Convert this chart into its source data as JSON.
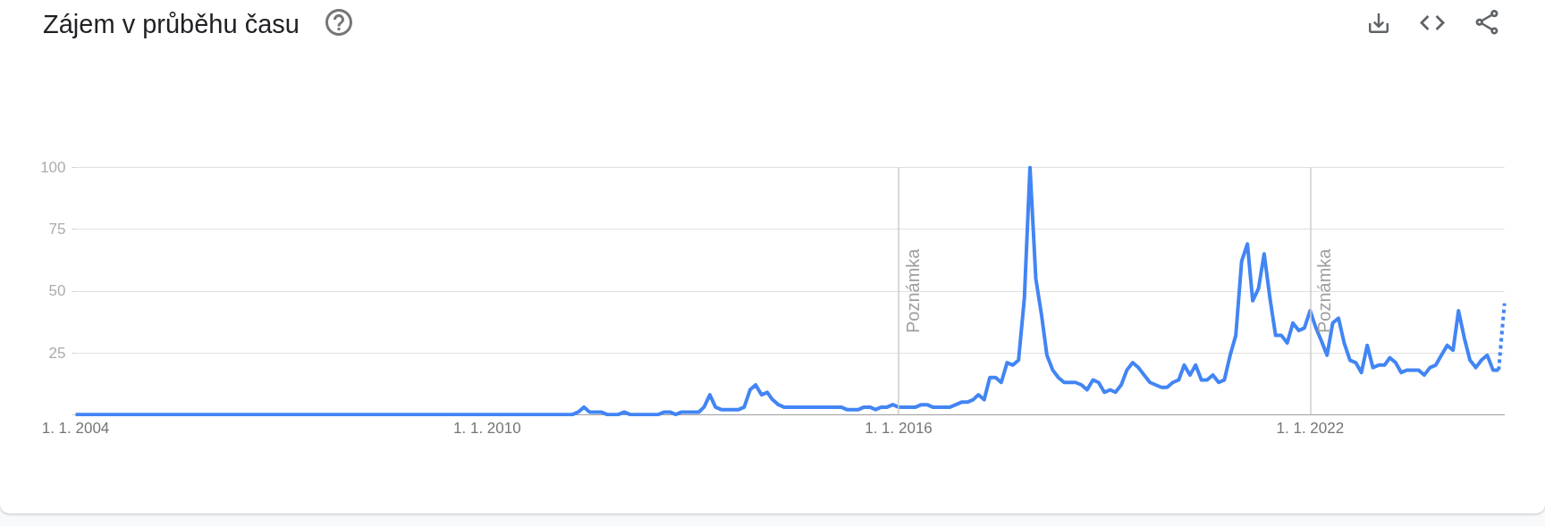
{
  "chart_data": {
    "type": "line",
    "title": "Zájem v průběhu času",
    "xlim": [
      "2004-01",
      "2024-11"
    ],
    "xticks": [
      {
        "value": "2004-01-01",
        "label": "1. 1. 2004"
      },
      {
        "value": "2010-01-01",
        "label": "1. 1. 2010"
      },
      {
        "value": "2016-01-01",
        "label": "1. 1. 2016"
      },
      {
        "value": "2022-01-01",
        "label": "1. 1. 2022"
      }
    ],
    "ylim": [
      0,
      100
    ],
    "yticks": [
      {
        "value": 0,
        "label": null
      },
      25,
      50,
      75,
      100
    ],
    "grid": "y",
    "marker": "none",
    "ref_lines": [
      {
        "axis": "x",
        "value": "2016-01-01",
        "label": "Poznámka",
        "color": "#cccccc"
      },
      {
        "axis": "x",
        "value": "2022-01-01",
        "label": "Poznámka",
        "color": "#cccccc"
      }
    ],
    "series": [
      {
        "color": "#4285f4",
        "line_style": "solid",
        "x": [
          "2004-01",
          "2011-04",
          "2011-05",
          "2011-06",
          "2011-07",
          "2011-08",
          "2011-09",
          "2011-10",
          "2011-12",
          "2012-01",
          "2012-02",
          "2012-07",
          "2012-08",
          "2012-09",
          "2012-10",
          "2012-11",
          "2013-02",
          "2013-03",
          "2013-04",
          "2013-05",
          "2013-06",
          "2013-09",
          "2013-10",
          "2013-11",
          "2013-12",
          "2014-01",
          "2014-02",
          "2014-03",
          "2014-04",
          "2014-05",
          "2015-03",
          "2015-04",
          "2015-06",
          "2015-07",
          "2015-08",
          "2015-09",
          "2015-10",
          "2015-11",
          "2015-12",
          "2016-01",
          "2016-04",
          "2016-05",
          "2016-06",
          "2016-07",
          "2016-10",
          "2016-11",
          "2016-12",
          "2017-01",
          "2017-02",
          "2017-03",
          "2017-04",
          "2017-05",
          "2017-06",
          "2017-07",
          "2017-08",
          "2017-09",
          "2017-10",
          "2017-11",
          "2017-12",
          "2018-01",
          "2018-02",
          "2018-03",
          "2018-04",
          "2018-05",
          "2018-06",
          "2018-08",
          "2018-09",
          "2018-10",
          "2018-11",
          "2018-12",
          "2019-01",
          "2019-02",
          "2019-03",
          "2019-04",
          "2019-05",
          "2019-06",
          "2019-07",
          "2019-08",
          "2019-09",
          "2019-10",
          "2019-11",
          "2019-12",
          "2020-01",
          "2020-02",
          "2020-03",
          "2020-04",
          "2020-05",
          "2020-06",
          "2020-07",
          "2020-08",
          "2020-09",
          "2020-10",
          "2020-11",
          "2020-12",
          "2021-01",
          "2021-02",
          "2021-03",
          "2021-04",
          "2021-05",
          "2021-06",
          "2021-07",
          "2021-08",
          "2021-09",
          "2021-10",
          "2021-11",
          "2021-12",
          "2022-01",
          "2022-02",
          "2022-03",
          "2022-04",
          "2022-05",
          "2022-06",
          "2022-07",
          "2022-08",
          "2022-09",
          "2022-10",
          "2022-11",
          "2022-12",
          "2023-01",
          "2023-02",
          "2023-03",
          "2023-04",
          "2023-05",
          "2023-06",
          "2023-08",
          "2023-09",
          "2023-10",
          "2023-11",
          "2023-12",
          "2024-01",
          "2024-02",
          "2024-03",
          "2024-04",
          "2024-05",
          "2024-06",
          "2024-07",
          "2024-08",
          "2024-09",
          "2024-10"
        ],
        "values": [
          0,
          0,
          1,
          3,
          1,
          1,
          1,
          0,
          0,
          1,
          0,
          0,
          1,
          1,
          0,
          1,
          1,
          3,
          8,
          3,
          2,
          2,
          3,
          10,
          12,
          8,
          9,
          6,
          4,
          3,
          3,
          2,
          2,
          3,
          3,
          2,
          3,
          3,
          4,
          3,
          3,
          4,
          4,
          3,
          3,
          4,
          5,
          5,
          6,
          8,
          6,
          15,
          15,
          13,
          21,
          20,
          22,
          47,
          100,
          55,
          40,
          24,
          18,
          15,
          13,
          13,
          12,
          10,
          14,
          13,
          9,
          10,
          9,
          12,
          18,
          21,
          19,
          16,
          13,
          12,
          11,
          11,
          13,
          14,
          20,
          16,
          20,
          14,
          14,
          16,
          13,
          14,
          24,
          32,
          62,
          69,
          46,
          51,
          65,
          47,
          32,
          32,
          29,
          37,
          34,
          35,
          42,
          35,
          30,
          24,
          37,
          39,
          29,
          22,
          21,
          17,
          28,
          19,
          20,
          20,
          23,
          21,
          17,
          18,
          18,
          16,
          19,
          20,
          24,
          28,
          26,
          42,
          31,
          22,
          19,
          22,
          24,
          18,
          18
        ]
      },
      {
        "color": "#4285f4",
        "line_style": "dotted",
        "x": [
          "2024-10",
          "2024-11"
        ],
        "values": [
          18,
          45
        ]
      }
    ]
  }
}
